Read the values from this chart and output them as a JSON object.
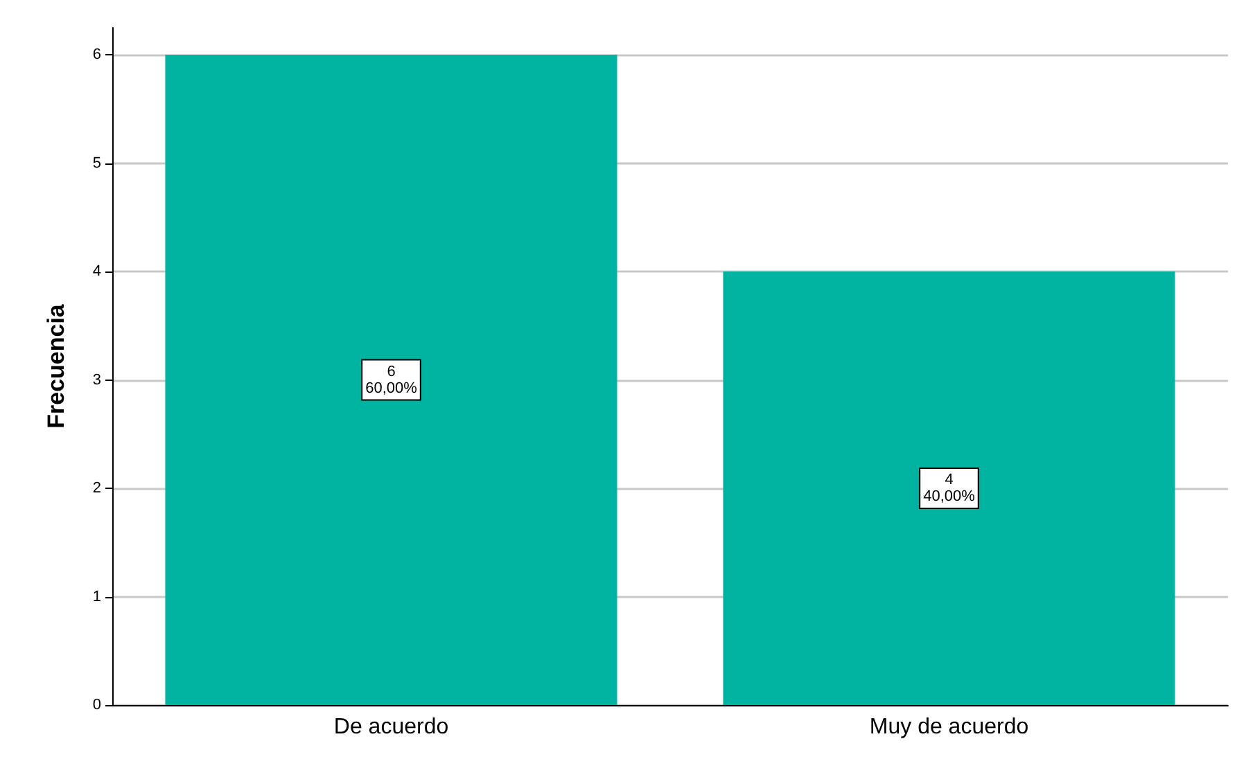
{
  "chart_data": {
    "type": "bar",
    "ylabel": "Frecuencia",
    "categories": [
      "De acuerdo",
      "Muy de acuerdo"
    ],
    "values": [
      6,
      4
    ],
    "value_labels": [
      "6\n60,00%",
      "4\n40,00%"
    ],
    "color": "#00b2a0",
    "ylim": [
      0,
      6.25
    ],
    "yticks": [
      0,
      1,
      2,
      3,
      4,
      5,
      6
    ],
    "grid": "y"
  }
}
